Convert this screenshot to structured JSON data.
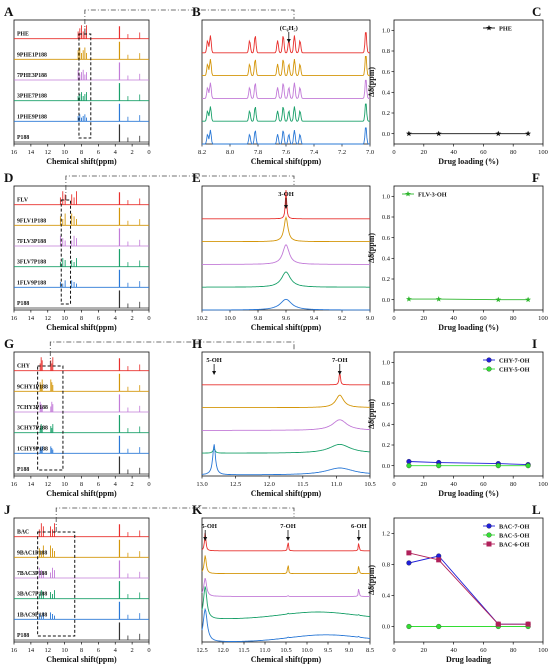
{
  "figure": {
    "rows": [
      {
        "id": "phe",
        "stack": {
          "letter": "A",
          "xlabel": "Chemical shift(ppm)",
          "ticks": [
            "16",
            "14",
            "12",
            "10",
            "8",
            "6",
            "4",
            "2",
            "0"
          ],
          "rows": [
            {
              "label": "PHE",
              "color": "#e8302d"
            },
            {
              "label": "9PHE1P188",
              "color": "#d4960a"
            },
            {
              "label": "7PHE3P188",
              "color": "#c27bd8"
            },
            {
              "label": "3PHE7P188",
              "color": "#1aa06a"
            },
            {
              "label": "1PHE9P188",
              "color": "#2a78d6"
            },
            {
              "label": "P188",
              "color": "#333333"
            }
          ]
        },
        "zoom": {
          "letter": "B",
          "xlabel": "Chemical shift(ppm)",
          "ticks": [
            "8.2",
            "8.0",
            "7.8",
            "7.6",
            "7.4",
            "7.2",
            "7.0"
          ],
          "annotations": [
            {
              "text": "(C₆H₅)"
            }
          ]
        },
        "plot": {
          "letter": "C",
          "xlabel": "Drug loading (%)",
          "ylabel": "Δδ(ppm)",
          "xticks": [
            "0",
            "20",
            "40",
            "60",
            "80",
            "100"
          ],
          "yticks": [
            "0.0",
            "0.2",
            "0.4",
            "0.6",
            "0.8",
            "1.0"
          ]
        }
      },
      {
        "id": "flv",
        "stack": {
          "letter": "D",
          "xlabel": "Chemical shift(ppm)",
          "ticks": [
            "16",
            "14",
            "12",
            "10",
            "8",
            "6",
            "4",
            "2",
            "0"
          ],
          "rows": [
            {
              "label": "FLV",
              "color": "#e8302d"
            },
            {
              "label": "9FLV1P188",
              "color": "#d4960a"
            },
            {
              "label": "7FLV3P188",
              "color": "#c27bd8"
            },
            {
              "label": "3FLV7P188",
              "color": "#1aa06a"
            },
            {
              "label": "1FLV9P188",
              "color": "#2a78d6"
            },
            {
              "label": "P188",
              "color": "#333333"
            }
          ]
        },
        "zoom": {
          "letter": "E",
          "xlabel": "Chemical shift(ppm)",
          "ticks": [
            "10.2",
            "10.0",
            "9.8",
            "9.6",
            "9.4",
            "9.2",
            "9.0"
          ],
          "annotations": [
            {
              "text": "3-OH"
            }
          ]
        },
        "plot": {
          "letter": "F",
          "xlabel": "Drug loading (%)",
          "ylabel": "Δδ(ppm)",
          "xticks": [
            "0",
            "20",
            "40",
            "60",
            "80",
            "100"
          ],
          "yticks": [
            "0.0",
            "0.2",
            "0.4",
            "0.6",
            "0.8",
            "1.0"
          ]
        }
      },
      {
        "id": "chy",
        "stack": {
          "letter": "G",
          "xlabel": "Chemical shift(ppm)",
          "ticks": [
            "16",
            "14",
            "12",
            "10",
            "8",
            "6",
            "4",
            "2",
            "0"
          ],
          "rows": [
            {
              "label": "CHY",
              "color": "#e8302d"
            },
            {
              "label": "9CHY1P188",
              "color": "#d4960a"
            },
            {
              "label": "7CHY3P188",
              "color": "#c27bd8"
            },
            {
              "label": "3CHY7P188",
              "color": "#1aa06a"
            },
            {
              "label": "1CHY9P188",
              "color": "#2a78d6"
            },
            {
              "label": "P188",
              "color": "#333333"
            }
          ]
        },
        "zoom": {
          "letter": "H",
          "xlabel": "Chemical shift(ppm)",
          "ticks": [
            "13.0",
            "12.5",
            "12.0",
            "11.5",
            "11.0",
            "10.5"
          ],
          "annotations": [
            {
              "text": "5-OH"
            },
            {
              "text": "7-OH"
            }
          ]
        },
        "plot": {
          "letter": "I",
          "xlabel": "Drug loading (%)",
          "ylabel": "Δδ(ppm)",
          "xticks": [
            "0",
            "20",
            "40",
            "60",
            "80",
            "100"
          ],
          "yticks": [
            "0.0",
            "0.2",
            "0.4",
            "0.6",
            "0.8",
            "1.0"
          ]
        }
      },
      {
        "id": "bac",
        "stack": {
          "letter": "J",
          "xlabel": "Chemical shift(ppm)",
          "ticks": [
            "16",
            "14",
            "12",
            "10",
            "8",
            "6",
            "4",
            "2",
            "0"
          ],
          "rows": [
            {
              "label": "BAC",
              "color": "#e8302d"
            },
            {
              "label": "9BAC1P188",
              "color": "#d4960a"
            },
            {
              "label": "7BAC3P188",
              "color": "#c27bd8"
            },
            {
              "label": "3BAC7P188",
              "color": "#1aa06a"
            },
            {
              "label": "1BAC9P188",
              "color": "#2a78d6"
            },
            {
              "label": "P188",
              "color": "#333333"
            }
          ]
        },
        "zoom": {
          "letter": "K",
          "xlabel": "Chemical shift(ppm)",
          "ticks": [
            "12.5",
            "12.0",
            "11.5",
            "11.0",
            "10.5",
            "10.0",
            "9.5",
            "9.0",
            "8.5"
          ],
          "annotations": [
            {
              "text": "5-OH"
            },
            {
              "text": "7-OH"
            },
            {
              "text": "6-OH"
            }
          ]
        },
        "plot": {
          "letter": "L",
          "xlabel": "Drug loading",
          "ylabel": "Δδ(ppm)",
          "xticks": [
            "0",
            "20",
            "40",
            "60",
            "80",
            "100"
          ],
          "yticks": [
            "0.0",
            "0.4",
            "0.8",
            "1.2"
          ]
        }
      }
    ]
  },
  "chart_data": [
    {
      "type": "line",
      "panel": "C",
      "xlabel": "Drug loading (%)",
      "ylabel": "Δδ(ppm)",
      "xlim": [
        0,
        100
      ],
      "ylim": [
        -0.1,
        1.1
      ],
      "legend_position": "top-right",
      "series": [
        {
          "name": "PHE",
          "color": "#111111",
          "marker": "star",
          "x": [
            10,
            30,
            70,
            90
          ],
          "y": [
            0.0,
            0.0,
            0.0,
            0.0
          ]
        }
      ]
    },
    {
      "type": "line",
      "panel": "F",
      "xlabel": "Drug loading (%)",
      "ylabel": "Δδ(ppm)",
      "xlim": [
        0,
        100
      ],
      "ylim": [
        -0.1,
        1.1
      ],
      "legend_position": "top-left",
      "series": [
        {
          "name": "FLV-3-OH",
          "color": "#2db52d",
          "marker": "star",
          "x": [
            10,
            30,
            70,
            90
          ],
          "y": [
            0.005,
            0.005,
            0.0,
            0.0
          ]
        }
      ]
    },
    {
      "type": "line",
      "panel": "I",
      "xlabel": "Drug loading (%)",
      "ylabel": "Δδ(ppm)",
      "xlim": [
        0,
        100
      ],
      "ylim": [
        -0.1,
        1.1
      ],
      "legend_position": "top-right",
      "series": [
        {
          "name": "CHY-7-OH",
          "color": "#1f1fd8",
          "marker": "circle",
          "x": [
            10,
            30,
            70,
            90
          ],
          "y": [
            0.04,
            0.03,
            0.02,
            0.01
          ]
        },
        {
          "name": "CHY-5-OH",
          "color": "#33dd33",
          "marker": "circle",
          "x": [
            10,
            30,
            70,
            90
          ],
          "y": [
            0.0,
            0.0,
            0.0,
            0.0
          ]
        }
      ]
    },
    {
      "type": "line",
      "panel": "L",
      "xlabel": "Drug loading",
      "ylabel": "Δδ(ppm)",
      "xlim": [
        0,
        100
      ],
      "ylim": [
        -0.2,
        1.4
      ],
      "legend_position": "top-right",
      "series": [
        {
          "name": "BAC-7-OH",
          "color": "#1f1fd8",
          "marker": "circle",
          "x": [
            10,
            30,
            70,
            90
          ],
          "y": [
            0.82,
            0.91,
            0.03,
            0.03
          ]
        },
        {
          "name": "BAC-5-OH",
          "color": "#33dd33",
          "marker": "circle",
          "x": [
            10,
            30,
            70,
            90
          ],
          "y": [
            0.0,
            0.0,
            0.0,
            0.0
          ]
        },
        {
          "name": "BAC-6-OH",
          "color": "#b0205a",
          "marker": "square",
          "x": [
            10,
            30,
            70,
            90
          ],
          "y": [
            0.95,
            0.86,
            0.03,
            0.03
          ]
        }
      ]
    }
  ]
}
